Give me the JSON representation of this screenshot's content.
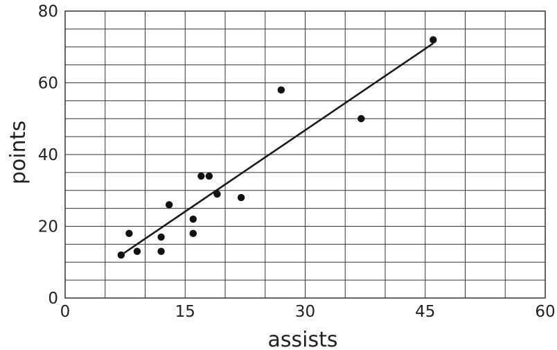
{
  "chart_data": {
    "type": "scatter",
    "title": "",
    "xlabel": "assists",
    "ylabel": "points",
    "xlim": [
      0,
      60
    ],
    "ylim": [
      0,
      80
    ],
    "x_ticks": [
      0,
      15,
      30,
      45,
      60
    ],
    "y_ticks": [
      0,
      20,
      40,
      60,
      80
    ],
    "x_tick_labels": [
      "0",
      "15",
      "30",
      "45",
      "60"
    ],
    "y_tick_labels": [
      "0",
      "20",
      "40",
      "60",
      "80"
    ],
    "x_grid_step": 5,
    "y_grid_step": 5,
    "grid": true,
    "legend": "none",
    "points": [
      {
        "x": 7,
        "y": 12
      },
      {
        "x": 8,
        "y": 18
      },
      {
        "x": 9,
        "y": 13
      },
      {
        "x": 12,
        "y": 13
      },
      {
        "x": 12,
        "y": 17
      },
      {
        "x": 13,
        "y": 26
      },
      {
        "x": 16,
        "y": 18
      },
      {
        "x": 16,
        "y": 22
      },
      {
        "x": 17,
        "y": 34
      },
      {
        "x": 18,
        "y": 34
      },
      {
        "x": 19,
        "y": 29
      },
      {
        "x": 22,
        "y": 28
      },
      {
        "x": 27,
        "y": 58
      },
      {
        "x": 37,
        "y": 50
      },
      {
        "x": 46,
        "y": 72
      }
    ],
    "trend_line": {
      "x1": 7,
      "y1": 12,
      "x2": 46,
      "y2": 71
    },
    "colors": {
      "points": "#111111",
      "line": "#1a1a1a",
      "grid": "#333333"
    }
  }
}
